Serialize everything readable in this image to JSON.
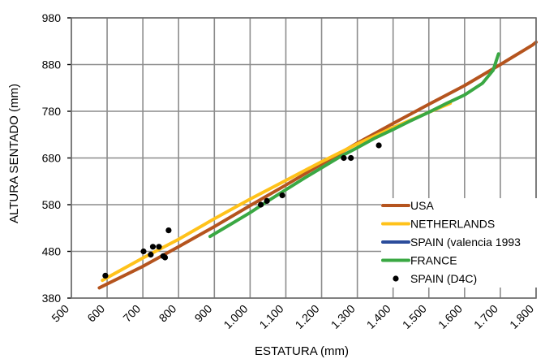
{
  "chart_data": {
    "type": "line",
    "title": "",
    "xlabel": "ESTATURA (mm)",
    "ylabel": "ALTURA SENTADO (mm)",
    "xlim": [
      500,
      1800
    ],
    "ylim": [
      380,
      980
    ],
    "x_ticks": [
      "500",
      "600",
      "700",
      "800",
      "900",
      "1.000",
      "1.100",
      "1.200",
      "1.300",
      "1.400",
      "1.500",
      "1.600",
      "1.700",
      "1.800"
    ],
    "y_ticks": [
      "380",
      "480",
      "580",
      "680",
      "780",
      "880",
      "980"
    ],
    "grid": true,
    "legend_position": "bottom-right",
    "series": [
      {
        "name": "USA",
        "kind": "line",
        "color": "#b5541e",
        "x": [
          578,
          700,
          800,
          900,
          1000,
          1100,
          1200,
          1300,
          1400,
          1500,
          1600,
          1700,
          1760,
          1790,
          1800
        ],
        "y": [
          402,
          448,
          490,
          533,
          578,
          622,
          667,
          712,
          754,
          795,
          835,
          880,
          908,
          922,
          928
        ]
      },
      {
        "name": "NETHERLANDS",
        "kind": "line",
        "color": "#ffc21a",
        "x": [
          587,
          700,
          800,
          900,
          1000,
          1100,
          1200,
          1300,
          1400,
          1500,
          1560
        ],
        "y": [
          418,
          466,
          506,
          550,
          592,
          632,
          672,
          710,
          745,
          778,
          797
        ]
      },
      {
        "name": "SPAIN (valencia 1993",
        "kind": "line",
        "color": "#2b4c9b",
        "x": [],
        "y": []
      },
      {
        "name": "FRANCE",
        "kind": "line",
        "color": "#3aa843",
        "x": [
          888,
          950,
          1000,
          1050,
          1100,
          1150,
          1200,
          1250,
          1300,
          1350,
          1400,
          1450,
          1500,
          1550,
          1600,
          1650,
          1680,
          1695
        ],
        "y": [
          512,
          540,
          563,
          588,
          612,
          636,
          659,
          682,
          702,
          723,
          741,
          760,
          778,
          797,
          815,
          840,
          868,
          903
        ]
      },
      {
        "name": "SPAIN (D4C)",
        "kind": "scatter",
        "color": "#000000",
        "x": [
          595,
          702,
          722,
          728,
          745,
          757,
          762,
          772,
          1030,
          1047,
          1090,
          1262,
          1282,
          1360
        ],
        "y": [
          428,
          480,
          473,
          490,
          490,
          470,
          467,
          525,
          580,
          588,
          600,
          680,
          680,
          707
        ]
      }
    ]
  }
}
